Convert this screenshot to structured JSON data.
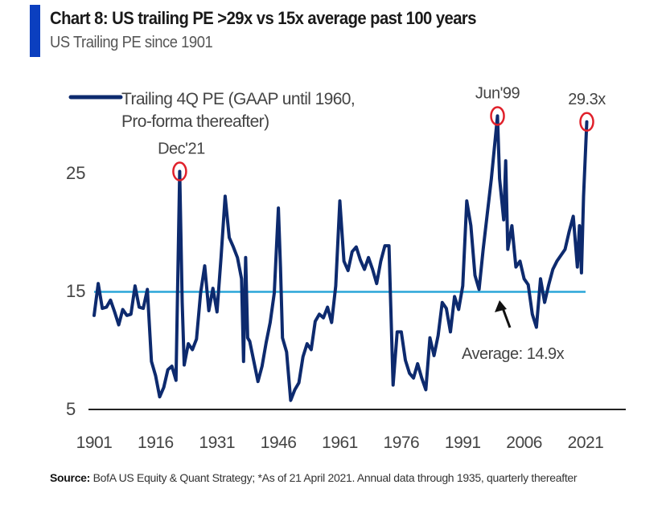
{
  "header": {
    "title": "Chart 8: US trailing PE >29x vs 15x average past 100 years",
    "subtitle": "US Trailing PE since 1901",
    "accent_color": "#0b3fbf"
  },
  "footer": {
    "source_label": "Source:",
    "source_text": "BofA US Equity & Quant Strategy; *As of 21 April 2021. Annual data through 1935, quarterly thereafter"
  },
  "chart_data": {
    "type": "line",
    "title": "Chart 8: US trailing PE >29x vs 15x average past 100 years",
    "subtitle": "US Trailing PE since 1901",
    "xlabel": "",
    "ylabel": "",
    "xlim": [
      1901,
      2028
    ],
    "ylim": [
      5,
      31
    ],
    "x_ticks": [
      1901,
      1916,
      1931,
      1946,
      1961,
      1976,
      1991,
      2006,
      2021
    ],
    "y_ticks": [
      5,
      15,
      25
    ],
    "grid": false,
    "legend": {
      "position": "top-left",
      "entries": [
        "Trailing 4Q PE (GAAP until 1960,",
        "Pro-forma thereafter)"
      ]
    },
    "colors": {
      "series": "#0d2a6e",
      "average": "#2aa6d8",
      "highlight": "#e0202a",
      "axis": "#222222",
      "text": "#444444"
    },
    "average": {
      "value": 14.9,
      "label": "Average: 14.9x"
    },
    "annotations": [
      {
        "label": "Dec'21",
        "x": 1921.9,
        "y": 25.1
      },
      {
        "label": "Jun'99",
        "x": 1999.5,
        "y": 29.8
      },
      {
        "label": "29.3x",
        "x": 2021.3,
        "y": 29.3
      }
    ],
    "series": [
      {
        "name": "Trailing 4Q PE (GAAP until 1960, Pro-forma thereafter)",
        "x": [
          1901,
          1902,
          1903,
          1904,
          1905,
          1906,
          1907,
          1908,
          1909,
          1910,
          1911,
          1912,
          1913,
          1914,
          1915,
          1916,
          1917,
          1918,
          1919,
          1920,
          1921,
          1921.9,
          1922.5,
          1923,
          1924,
          1925,
          1926,
          1927,
          1928,
          1929,
          1930,
          1931,
          1932,
          1933,
          1934,
          1935,
          1936,
          1937,
          1937.5,
          1938,
          1938.5,
          1939,
          1940,
          1941,
          1942,
          1943,
          1944,
          1945,
          1946,
          1946.5,
          1947,
          1948,
          1949,
          1950,
          1951,
          1952,
          1953,
          1954,
          1955,
          1956,
          1957,
          1958,
          1959,
          1960,
          1961,
          1962,
          1963,
          1964,
          1965,
          1966,
          1967,
          1968,
          1969,
          1970,
          1971,
          1972,
          1973,
          1974,
          1975,
          1976,
          1977,
          1978,
          1979,
          1980,
          1981,
          1982,
          1983,
          1984,
          1985,
          1986,
          1987,
          1988,
          1989,
          1990,
          1991,
          1992,
          1993,
          1994,
          1995,
          1996,
          1997,
          1998,
          1999.5,
          2000,
          2001,
          2001.5,
          2002,
          2003,
          2004,
          2005,
          2006,
          2007,
          2008,
          2009,
          2010,
          2011,
          2012,
          2013,
          2014,
          2015,
          2016,
          2017,
          2018,
          2019,
          2019.5,
          2020,
          2020.5,
          2021.3
        ],
        "values": [
          12.9,
          15.6,
          13.5,
          13.6,
          14.2,
          13.2,
          12.1,
          13.4,
          12.9,
          13.0,
          15.4,
          13.6,
          13.5,
          15.1,
          9.0,
          7.8,
          6.0,
          6.8,
          8.3,
          8.6,
          7.4,
          25.1,
          14.0,
          8.7,
          10.5,
          10.0,
          10.9,
          14.8,
          17.1,
          13.3,
          15.2,
          13.2,
          17.8,
          23.0,
          19.5,
          18.7,
          17.8,
          16.0,
          9.0,
          17.8,
          11.0,
          10.7,
          9.0,
          7.3,
          8.6,
          10.6,
          12.3,
          14.8,
          22.0,
          17.0,
          11.0,
          9.8,
          5.7,
          6.6,
          7.2,
          9.4,
          10.5,
          10.0,
          12.4,
          13.0,
          12.7,
          13.6,
          12.3,
          15.4,
          22.6,
          17.5,
          16.7,
          18.3,
          18.7,
          17.6,
          16.8,
          17.8,
          16.8,
          15.6,
          17.5,
          18.8,
          18.8,
          7.0,
          11.5,
          11.5,
          9.1,
          8.0,
          7.6,
          8.8,
          7.6,
          6.6,
          11.0,
          9.5,
          11.2,
          14.0,
          13.5,
          11.5,
          14.5,
          13.4,
          15.4,
          22.6,
          20.5,
          16.3,
          15.1,
          18.5,
          21.5,
          24.5,
          29.8,
          24.5,
          21.0,
          26.0,
          18.5,
          20.5,
          17.0,
          17.5,
          16.0,
          15.5,
          13.0,
          11.9,
          16.0,
          14.0,
          15.5,
          16.8,
          17.5,
          18.0,
          18.5,
          20.0,
          21.3,
          17.0,
          20.5,
          16.5,
          23.0,
          29.3
        ]
      }
    ]
  }
}
